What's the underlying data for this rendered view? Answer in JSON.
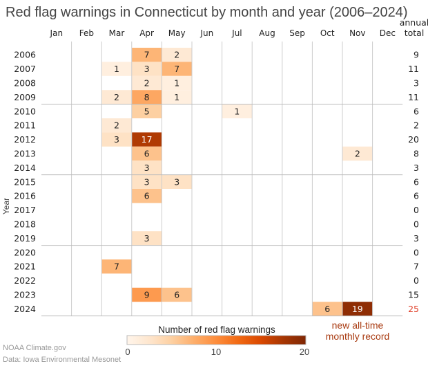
{
  "chart_data": {
    "type": "heatmap",
    "title": "Red flag warnings in Connecticut by month and year (2006–2024)",
    "ylabel": "Year",
    "months": [
      "Jan",
      "Feb",
      "Mar",
      "Apr",
      "May",
      "Jun",
      "Jul",
      "Aug",
      "Sep",
      "Oct",
      "Nov",
      "Dec"
    ],
    "total_header": [
      "annual",
      "total"
    ],
    "years": [
      2006,
      2007,
      2008,
      2009,
      2010,
      2011,
      2012,
      2013,
      2014,
      2015,
      2016,
      2017,
      2018,
      2019,
      2020,
      2021,
      2022,
      2023,
      2024
    ],
    "values": [
      [
        0,
        0,
        0,
        7,
        2,
        0,
        0,
        0,
        0,
        0,
        0,
        0
      ],
      [
        0,
        0,
        1,
        3,
        7,
        0,
        0,
        0,
        0,
        0,
        0,
        0
      ],
      [
        0,
        0,
        0,
        2,
        1,
        0,
        0,
        0,
        0,
        0,
        0,
        0
      ],
      [
        0,
        0,
        2,
        8,
        1,
        0,
        0,
        0,
        0,
        0,
        0,
        0
      ],
      [
        0,
        0,
        0,
        5,
        0,
        0,
        1,
        0,
        0,
        0,
        0,
        0
      ],
      [
        0,
        0,
        2,
        0,
        0,
        0,
        0,
        0,
        0,
        0,
        0,
        0
      ],
      [
        0,
        0,
        3,
        17,
        0,
        0,
        0,
        0,
        0,
        0,
        0,
        0
      ],
      [
        0,
        0,
        0,
        6,
        0,
        0,
        0,
        0,
        0,
        0,
        2,
        0
      ],
      [
        0,
        0,
        0,
        3,
        0,
        0,
        0,
        0,
        0,
        0,
        0,
        0
      ],
      [
        0,
        0,
        0,
        3,
        3,
        0,
        0,
        0,
        0,
        0,
        0,
        0
      ],
      [
        0,
        0,
        0,
        6,
        0,
        0,
        0,
        0,
        0,
        0,
        0,
        0
      ],
      [
        0,
        0,
        0,
        0,
        0,
        0,
        0,
        0,
        0,
        0,
        0,
        0
      ],
      [
        0,
        0,
        0,
        0,
        0,
        0,
        0,
        0,
        0,
        0,
        0,
        0
      ],
      [
        0,
        0,
        0,
        3,
        0,
        0,
        0,
        0,
        0,
        0,
        0,
        0
      ],
      [
        0,
        0,
        0,
        0,
        0,
        0,
        0,
        0,
        0,
        0,
        0,
        0
      ],
      [
        0,
        0,
        7,
        0,
        0,
        0,
        0,
        0,
        0,
        0,
        0,
        0
      ],
      [
        0,
        0,
        0,
        0,
        0,
        0,
        0,
        0,
        0,
        0,
        0,
        0
      ],
      [
        0,
        0,
        0,
        9,
        6,
        0,
        0,
        0,
        0,
        0,
        0,
        0
      ],
      [
        0,
        0,
        0,
        0,
        0,
        0,
        0,
        0,
        0,
        6,
        19,
        0
      ]
    ],
    "annual_totals": [
      9,
      11,
      3,
      11,
      6,
      2,
      20,
      8,
      3,
      6,
      6,
      0,
      0,
      3,
      0,
      7,
      0,
      15,
      25
    ],
    "highlight_total_color": "#e0402a",
    "colorbar": {
      "title": "Number of red flag warnings",
      "range": [
        0,
        20
      ],
      "ticks": [
        0,
        10,
        20
      ],
      "colormap": "Oranges"
    },
    "annotation": [
      "new all-time",
      "monthly record"
    ],
    "annotation_color": "#a83a10"
  },
  "footer": {
    "credit": "NOAA Climate.gov",
    "source": "Data: Iowa Environmental Mesonet"
  }
}
